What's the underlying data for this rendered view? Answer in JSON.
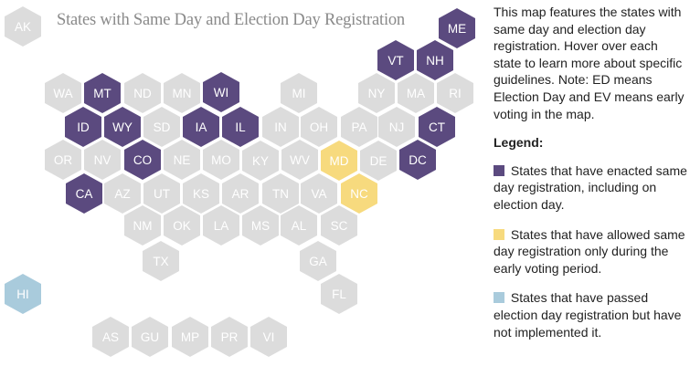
{
  "map": {
    "title": "States with Same Day and Election Day Registration",
    "states": [
      {
        "abbr": "AK",
        "status": "none"
      },
      {
        "abbr": "ME",
        "status": "enacted"
      },
      {
        "abbr": "VT",
        "status": "enacted"
      },
      {
        "abbr": "NH",
        "status": "enacted"
      },
      {
        "abbr": "WA",
        "status": "none"
      },
      {
        "abbr": "MT",
        "status": "enacted"
      },
      {
        "abbr": "ND",
        "status": "none"
      },
      {
        "abbr": "MN",
        "status": "none"
      },
      {
        "abbr": "WI",
        "status": "enacted"
      },
      {
        "abbr": "MI",
        "status": "none"
      },
      {
        "abbr": "NY",
        "status": "none"
      },
      {
        "abbr": "MA",
        "status": "none"
      },
      {
        "abbr": "RI",
        "status": "none"
      },
      {
        "abbr": "ID",
        "status": "enacted"
      },
      {
        "abbr": "WY",
        "status": "enacted"
      },
      {
        "abbr": "SD",
        "status": "none"
      },
      {
        "abbr": "IA",
        "status": "enacted"
      },
      {
        "abbr": "IL",
        "status": "enacted"
      },
      {
        "abbr": "IN",
        "status": "none"
      },
      {
        "abbr": "OH",
        "status": "none"
      },
      {
        "abbr": "PA",
        "status": "none"
      },
      {
        "abbr": "NJ",
        "status": "none"
      },
      {
        "abbr": "CT",
        "status": "enacted"
      },
      {
        "abbr": "OR",
        "status": "none"
      },
      {
        "abbr": "NV",
        "status": "none"
      },
      {
        "abbr": "CO",
        "status": "enacted"
      },
      {
        "abbr": "NE",
        "status": "none"
      },
      {
        "abbr": "MO",
        "status": "none"
      },
      {
        "abbr": "KY",
        "status": "none"
      },
      {
        "abbr": "WV",
        "status": "none"
      },
      {
        "abbr": "MD",
        "status": "early"
      },
      {
        "abbr": "DE",
        "status": "none"
      },
      {
        "abbr": "DC",
        "status": "enacted"
      },
      {
        "abbr": "CA",
        "status": "enacted"
      },
      {
        "abbr": "AZ",
        "status": "none"
      },
      {
        "abbr": "UT",
        "status": "none"
      },
      {
        "abbr": "KS",
        "status": "none"
      },
      {
        "abbr": "AR",
        "status": "none"
      },
      {
        "abbr": "TN",
        "status": "none"
      },
      {
        "abbr": "VA",
        "status": "none"
      },
      {
        "abbr": "NC",
        "status": "early"
      },
      {
        "abbr": "NM",
        "status": "none"
      },
      {
        "abbr": "OK",
        "status": "none"
      },
      {
        "abbr": "LA",
        "status": "none"
      },
      {
        "abbr": "MS",
        "status": "none"
      },
      {
        "abbr": "AL",
        "status": "none"
      },
      {
        "abbr": "SC",
        "status": "none"
      },
      {
        "abbr": "TX",
        "status": "none"
      },
      {
        "abbr": "GA",
        "status": "none"
      },
      {
        "abbr": "HI",
        "status": "notimpl"
      },
      {
        "abbr": "FL",
        "status": "none"
      },
      {
        "abbr": "AS",
        "status": "none"
      },
      {
        "abbr": "GU",
        "status": "none"
      },
      {
        "abbr": "MP",
        "status": "none"
      },
      {
        "abbr": "PR",
        "status": "none"
      },
      {
        "abbr": "VI",
        "status": "none"
      }
    ]
  },
  "panel": {
    "description": "This map features the states with same day and election day registration. Hover over each state to learn more about specific guidelines. Note: ED means Election Day and EV means early voting in the map.",
    "legend_title": "Legend:",
    "legend": [
      {
        "status": "enacted",
        "color": "#5b4a7f",
        "label": "States that have enacted same day registration, including on election day."
      },
      {
        "status": "early",
        "color": "#f7da7e",
        "label": "States that have allowed same day registration only during the early voting period."
      },
      {
        "status": "notimpl",
        "color": "#a9cbdc",
        "label": "States that have passed election day registration but have not implemented it."
      }
    ]
  }
}
